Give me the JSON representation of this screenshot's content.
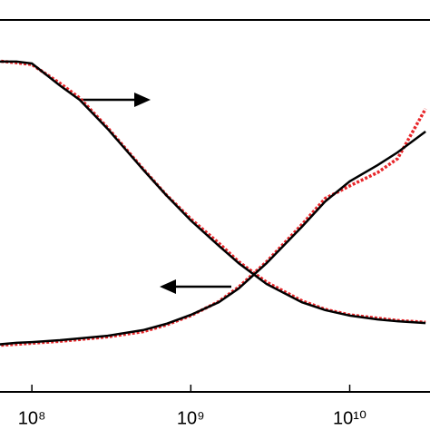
{
  "chart_data": {
    "type": "line",
    "xscale": "log",
    "x": [
      60000000,
      80000000,
      100000000,
      150000000,
      200000000,
      300000000,
      500000000,
      700000000,
      1000000000,
      1500000000,
      2000000000,
      3000000000,
      5000000000,
      7000000000,
      10000000000,
      15000000000,
      20000000000,
      30000000000
    ],
    "xlim": [
      63000000,
      32000000000
    ],
    "xticks": [
      {
        "value": 100000000,
        "label": "10⁸"
      },
      {
        "value": 1000000000,
        "label": "10⁹"
      },
      {
        "value": 10000000000,
        "label": "10¹⁰"
      }
    ],
    "ylim": [
      0,
      1
    ],
    "series": [
      {
        "color": "#000000",
        "style": "solid",
        "values": [
          0.888,
          0.888,
          0.883,
          0.824,
          0.785,
          0.707,
          0.598,
          0.529,
          0.461,
          0.393,
          0.346,
          0.29,
          0.241,
          0.22,
          0.205,
          0.195,
          0.19,
          0.185
        ]
      },
      {
        "color": "#e8262a",
        "style": "dotted",
        "values": [
          0.89,
          0.885,
          0.88,
          0.83,
          0.79,
          0.71,
          0.6,
          0.53,
          0.465,
          0.4,
          0.35,
          0.295,
          0.245,
          0.222,
          0.207,
          0.198,
          0.192,
          0.187
        ]
      },
      {
        "color": "#000000",
        "style": "solid",
        "values": [
          0.127,
          0.132,
          0.134,
          0.139,
          0.144,
          0.151,
          0.166,
          0.183,
          0.207,
          0.241,
          0.278,
          0.346,
          0.444,
          0.512,
          0.566,
          0.61,
          0.644,
          0.7
        ]
      },
      {
        "color": "#e8262a",
        "style": "dotted",
        "values": [
          0.125,
          0.128,
          0.131,
          0.136,
          0.141,
          0.148,
          0.162,
          0.18,
          0.205,
          0.243,
          0.282,
          0.35,
          0.45,
          0.52,
          0.554,
          0.59,
          0.627,
          0.761
        ]
      }
    ]
  }
}
